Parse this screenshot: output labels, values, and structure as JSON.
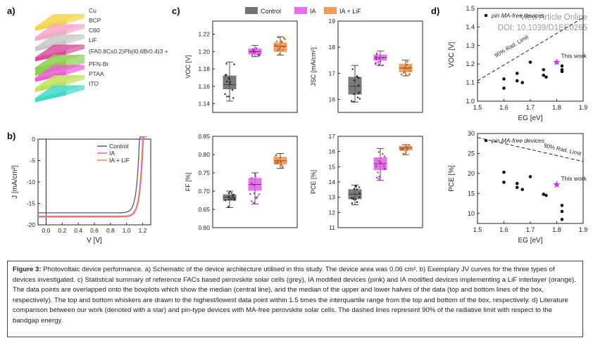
{
  "panels": {
    "a": "a)",
    "b": "b)",
    "c": "c)",
    "d": "d)"
  },
  "watermark": {
    "line1": "View Article Online",
    "line2": "DOI: 10.1039/D1EE0265"
  },
  "device_stack": {
    "layers": [
      {
        "label": "Cu",
        "color": "#f5d24b"
      },
      {
        "label": "BCP",
        "color": "#f7a5c8"
      },
      {
        "label": "C60",
        "color": "#c8c8c8"
      },
      {
        "label": "LiF",
        "color": "#d94da0"
      },
      {
        "label": "(FA0.8Cs0.2)Pb(I0.6Br0.4)3 + IL",
        "color": "#8ccf4f"
      },
      {
        "label": "PFN-Br",
        "color": "#ec5fd6"
      },
      {
        "label": "PTAA",
        "color": "#bfe05a"
      },
      {
        "label": "ITO",
        "color": "#40d8c8"
      }
    ]
  },
  "colors": {
    "control": "#5a5a5a",
    "ia": "#e254e8",
    "ia_lif": "#f08a3c"
  },
  "legend": {
    "control": "Control",
    "ia": "IA",
    "ia_lif": "IA + LiF"
  },
  "chart_data": [
    {
      "id": "b",
      "type": "line",
      "xlabel": "V [V]",
      "ylabel": "J [mA/cm²]",
      "xlim": [
        -0.1,
        1.3
      ],
      "ylim": [
        -20,
        0
      ],
      "xticks": [
        "0.0",
        "0.2",
        "0.4",
        "0.6",
        "0.8",
        "1.0",
        "1.2"
      ],
      "yticks": [
        "0",
        "-5",
        "-10",
        "-15",
        "-20"
      ],
      "series": [
        {
          "name": "Control",
          "jsc": -17.2,
          "voc": 1.16
        },
        {
          "name": "IA",
          "jsc": -18.0,
          "voc": 1.2
        },
        {
          "name": "IA + LiF",
          "jsc": -18.2,
          "voc": 1.21
        }
      ]
    },
    {
      "id": "c-voc",
      "type": "box",
      "ylabel": "VOC [V]",
      "ylim": [
        1.13,
        1.235
      ],
      "yticks": [
        "1.14",
        "1.16",
        "1.18",
        "1.20",
        "1.22"
      ],
      "groups": [
        {
          "name": "Control",
          "q1": 1.157,
          "median": 1.162,
          "q3": 1.172,
          "min": 1.143,
          "max": 1.188
        },
        {
          "name": "IA",
          "q1": 1.197,
          "median": 1.2,
          "q3": 1.203,
          "min": 1.194,
          "max": 1.207
        },
        {
          "name": "IA + LiF",
          "q1": 1.2,
          "median": 1.206,
          "q3": 1.21,
          "min": 1.196,
          "max": 1.217
        }
      ]
    },
    {
      "id": "c-jsc",
      "type": "box",
      "ylabel": "JSC [mA/cm²]",
      "ylim": [
        15.5,
        19
      ],
      "yticks": [
        "16",
        "17",
        "18",
        "19"
      ],
      "groups": [
        {
          "name": "Control",
          "q1": 16.2,
          "median": 16.5,
          "q3": 16.85,
          "min": 15.9,
          "max": 17.3
        },
        {
          "name": "IA",
          "q1": 17.5,
          "median": 17.6,
          "q3": 17.7,
          "min": 17.3,
          "max": 17.85
        },
        {
          "name": "IA + LiF",
          "q1": 17.05,
          "median": 17.2,
          "q3": 17.35,
          "min": 16.9,
          "max": 17.5
        }
      ]
    },
    {
      "id": "c-ff",
      "type": "box",
      "ylabel": "FF [%]",
      "ylim": [
        0.6,
        0.85
      ],
      "yticks": [
        "0.60",
        "0.65",
        "0.70",
        "0.75",
        "0.80",
        "0.85"
      ],
      "groups": [
        {
          "name": "Control",
          "q1": 0.675,
          "median": 0.683,
          "q3": 0.69,
          "min": 0.655,
          "max": 0.7
        },
        {
          "name": "IA",
          "q1": 0.702,
          "median": 0.718,
          "q3": 0.735,
          "min": 0.665,
          "max": 0.75
        },
        {
          "name": "IA + LiF",
          "q1": 0.774,
          "median": 0.783,
          "q3": 0.793,
          "min": 0.762,
          "max": 0.803
        }
      ]
    },
    {
      "id": "c-pce",
      "type": "box",
      "ylabel": "PCE [%]",
      "ylim": [
        11,
        17
      ],
      "yticks": [
        "11",
        "12",
        "13",
        "14",
        "15",
        "16",
        "17"
      ],
      "groups": [
        {
          "name": "Control",
          "q1": 12.9,
          "median": 13.2,
          "q3": 13.5,
          "min": 12.5,
          "max": 13.8
        },
        {
          "name": "IA",
          "q1": 14.8,
          "median": 15.2,
          "q3": 15.6,
          "min": 14.1,
          "max": 16.2
        },
        {
          "name": "IA + LiF",
          "q1": 16.1,
          "median": 16.25,
          "q3": 16.35,
          "min": 15.8,
          "max": 16.45
        }
      ]
    },
    {
      "id": "d-voc",
      "type": "scatter",
      "xlabel": "EG [eV]",
      "ylabel": "VOC [V]",
      "xlim": [
        1.5,
        1.9
      ],
      "ylim": [
        1.0,
        1.5
      ],
      "xticks": [
        "1.5",
        "1.6",
        "1.7",
        "1.8",
        "1.9"
      ],
      "yticks": [
        "1.0",
        "1.1",
        "1.2",
        "1.3",
        "1.4",
        "1.5"
      ],
      "legend": "pin MA-free devices",
      "limit_label": "90% Rad. Limit",
      "limit_line": [
        [
          1.5,
          1.11
        ],
        [
          1.9,
          1.45
        ]
      ],
      "points": [
        [
          1.6,
          1.07
        ],
        [
          1.6,
          1.12
        ],
        [
          1.65,
          1.11
        ],
        [
          1.65,
          1.15
        ],
        [
          1.67,
          1.1
        ],
        [
          1.7,
          1.21
        ],
        [
          1.75,
          1.17
        ],
        [
          1.75,
          1.14
        ],
        [
          1.76,
          1.13
        ],
        [
          1.82,
          1.17
        ],
        [
          1.82,
          1.19
        ],
        [
          1.82,
          1.16
        ]
      ],
      "this_work": [
        1.8,
        1.21
      ],
      "this_work_label": "This work"
    },
    {
      "id": "d-pce",
      "type": "scatter",
      "xlabel": "EG [eV]",
      "ylabel": "PCE [%]",
      "xlim": [
        1.5,
        1.9
      ],
      "ylim": [
        7.5,
        30
      ],
      "xticks": [
        "1.5",
        "1.6",
        "1.7",
        "1.8",
        "1.9"
      ],
      "yticks": [
        "10",
        "15",
        "20",
        "25",
        "30"
      ],
      "legend": "pin MA-free devices",
      "limit_label": "90% Rad. Limit",
      "limit_line": [
        [
          1.5,
          29
        ],
        [
          1.9,
          23
        ]
      ],
      "points": [
        [
          1.6,
          20.3
        ],
        [
          1.6,
          17.8
        ],
        [
          1.65,
          17.5
        ],
        [
          1.65,
          16.5
        ],
        [
          1.67,
          16.0
        ],
        [
          1.7,
          19.2
        ],
        [
          1.75,
          14.8
        ],
        [
          1.76,
          14.5
        ],
        [
          1.82,
          12.0
        ],
        [
          1.82,
          10.5
        ],
        [
          1.82,
          8.5
        ]
      ],
      "this_work": [
        1.8,
        17.2
      ],
      "this_work_label": "This work"
    }
  ],
  "caption": {
    "title": "Figure 3:",
    "text": " Photovoltaic device performance. a) Schematic of the device architecture utilised in this study. The device area was 0.06 cm². b) Exemplary JV curves for the three types of devices investigated. c) Statistical summary of reference FACs based perovskite solar cells (grey), IA modified devices (pink) and IA modified devices implementing a LiF interlayer (orange). The data points are overlapped onto the boxplots which show the median (central line), and the median of the upper and lower halves of the data (top and bottom lines of the box, respectively). The top and bottom whiskers are drawn to the highest/lowest data point within 1.5 times the interquartile range from the top and bottom of the box, respectively. d) Literature comparison between our work (denoted with a star) and pin-type devices with MA-free perovskite solar cells. The dashed lines represent 90% of the radiative limit with respect to the bandgap energy."
  }
}
